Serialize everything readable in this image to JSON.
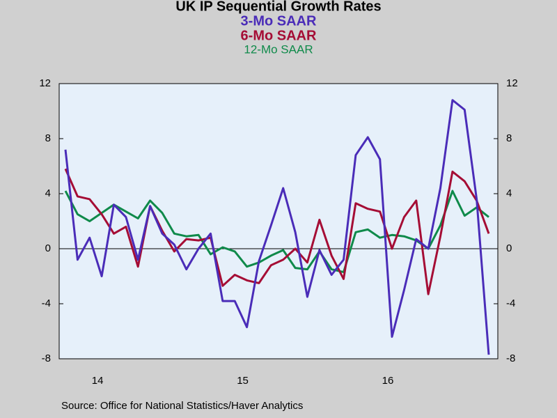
{
  "chart_data": {
    "type": "line",
    "title": "UK IP Sequential Growth Rates",
    "source": "Source:  Office for National Statistics/Haver Analytics",
    "categories": [
      null,
      null,
      null,
      "14",
      null,
      null,
      null,
      null,
      null,
      null,
      null,
      null,
      null,
      null,
      null,
      "15",
      null,
      null,
      null,
      null,
      null,
      null,
      null,
      null,
      null,
      null,
      null,
      "16",
      null,
      null,
      null,
      null,
      null,
      null,
      null,
      null
    ],
    "series": [
      {
        "name": "3-Mo SAAR",
        "color": "#4a2cb8",
        "values": [
          7.2,
          -0.8,
          0.8,
          -2.0,
          3.2,
          2.3,
          -0.8,
          3.1,
          1.1,
          0.3,
          -1.5,
          0.0,
          1.1,
          -3.8,
          -3.8,
          -5.7,
          -0.9,
          1.7,
          4.4,
          1.2,
          -3.5,
          -0.1,
          -1.9,
          -0.8,
          6.8,
          8.1,
          6.5,
          -6.4,
          -3.0,
          0.7,
          0.0,
          4.4,
          10.8,
          10.1,
          3.6,
          -7.7
        ]
      },
      {
        "name": "6-Mo SAAR",
        "color": "#a50d35",
        "values": [
          5.8,
          3.8,
          3.6,
          2.5,
          1.1,
          1.6,
          -1.3,
          3.1,
          1.3,
          -0.2,
          0.7,
          0.6,
          0.8,
          -2.7,
          -1.9,
          -2.3,
          -2.5,
          -1.2,
          -0.8,
          0.0,
          -1.0,
          2.1,
          -0.5,
          -2.2,
          3.3,
          2.9,
          2.7,
          0.0,
          2.3,
          3.5,
          -3.3,
          0.9,
          5.6,
          4.9,
          3.5,
          1.1
        ]
      },
      {
        "name": "12-Mo SAAR",
        "color": "#0f8a4a",
        "values": [
          4.2,
          2.5,
          2.0,
          2.6,
          3.2,
          2.7,
          2.2,
          3.5,
          2.6,
          1.1,
          0.9,
          1.0,
          -0.4,
          0.1,
          -0.2,
          -1.3,
          -1.0,
          -0.5,
          -0.1,
          -1.4,
          -1.5,
          -0.2,
          -1.5,
          -1.7,
          1.2,
          1.4,
          0.8,
          1.0,
          0.9,
          0.6,
          0.0,
          1.7,
          4.2,
          2.4,
          3.0,
          2.3
        ]
      }
    ],
    "ylim": [
      -8,
      12
    ],
    "yticks": [
      -8,
      -4,
      0,
      4,
      8,
      12
    ],
    "y2lim": [
      -8,
      12
    ],
    "y2ticks": [
      -8,
      -4,
      0,
      4,
      8,
      12
    ],
    "background": "#e6f0fa"
  }
}
